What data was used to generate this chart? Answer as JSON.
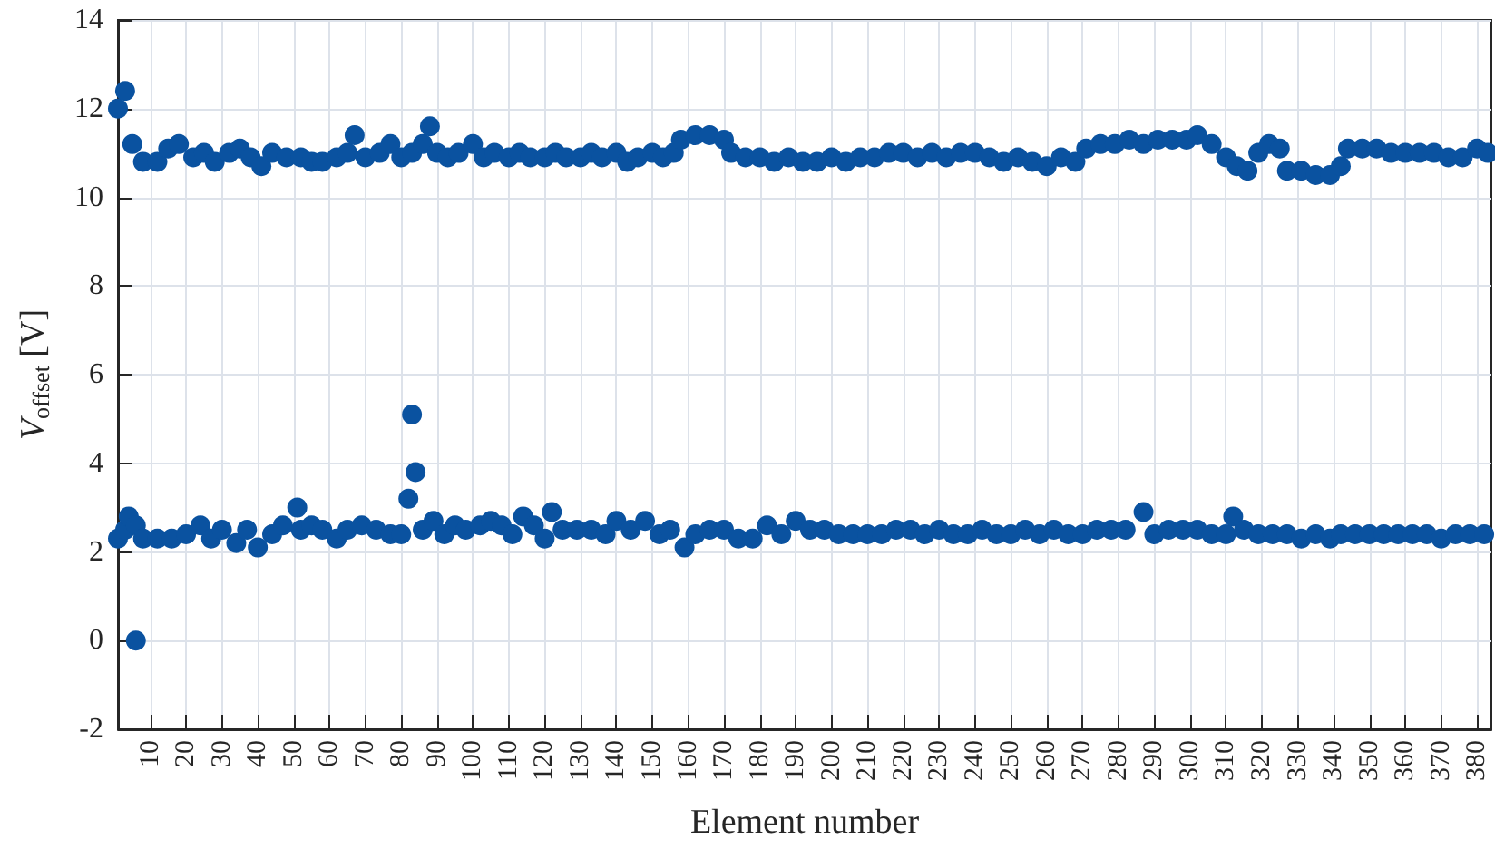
{
  "chart_data": {
    "type": "scatter",
    "xlabel": "Element number",
    "ylabel": "V$_{offset}$ [V]",
    "xlim": [
      1,
      384
    ],
    "ylim": [
      -2,
      14
    ],
    "xticks": [
      10,
      20,
      30,
      40,
      50,
      60,
      70,
      80,
      90,
      100,
      110,
      120,
      130,
      140,
      150,
      160,
      170,
      180,
      190,
      200,
      210,
      220,
      230,
      240,
      250,
      260,
      270,
      280,
      290,
      300,
      310,
      320,
      330,
      340,
      350,
      360,
      370,
      380
    ],
    "yticks": [
      -2,
      0,
      2,
      4,
      6,
      8,
      10,
      12,
      14
    ],
    "grid": true,
    "marker": "circle",
    "series": [
      {
        "color": "#0a52a0",
        "x": [
          1,
          3,
          5,
          8,
          12,
          15,
          18,
          22,
          25,
          28,
          32,
          35,
          38,
          41,
          44,
          48,
          52,
          55,
          58,
          62,
          65,
          67,
          70,
          74,
          77,
          80,
          83,
          86,
          88,
          90,
          93,
          96,
          100,
          103,
          106,
          110,
          113,
          116,
          120,
          123,
          126,
          130,
          133,
          136,
          140,
          143,
          146,
          150,
          153,
          156,
          158,
          162,
          166,
          170,
          172,
          176,
          180,
          184,
          188,
          192,
          196,
          200,
          204,
          208,
          212,
          216,
          220,
          224,
          228,
          232,
          236,
          240,
          244,
          248,
          252,
          256,
          260,
          264,
          268,
          271,
          275,
          279,
          283,
          287,
          291,
          295,
          299,
          302,
          306,
          310,
          313,
          316,
          319,
          322,
          325,
          327,
          331,
          335,
          339,
          342,
          344,
          348,
          352,
          356,
          360,
          364,
          368,
          372,
          376,
          380,
          383,
          1,
          3,
          4,
          6,
          6,
          8,
          12,
          16,
          20,
          24,
          27,
          30,
          34,
          37,
          40,
          44,
          47,
          51,
          52,
          55,
          58,
          62,
          65,
          69,
          73,
          77,
          80,
          82,
          83,
          84,
          86,
          89,
          92,
          95,
          98,
          102,
          105,
          108,
          111,
          114,
          117,
          120,
          122,
          125,
          129,
          133,
          137,
          140,
          144,
          148,
          152,
          155,
          159,
          162,
          166,
          170,
          174,
          178,
          182,
          186,
          190,
          194,
          198,
          202,
          206,
          210,
          214,
          218,
          222,
          226,
          230,
          234,
          238,
          242,
          246,
          250,
          254,
          258,
          262,
          266,
          270,
          274,
          278,
          282,
          287,
          290,
          294,
          298,
          302,
          306,
          310,
          312,
          315,
          319,
          323,
          327,
          331,
          335,
          339,
          342,
          346,
          350,
          354,
          358,
          362,
          366,
          370,
          374,
          378,
          382
        ],
        "values": [
          12.0,
          12.4,
          11.2,
          10.8,
          10.8,
          11.1,
          11.2,
          10.9,
          11.0,
          10.8,
          11.0,
          11.1,
          10.9,
          10.7,
          11.0,
          10.9,
          10.9,
          10.8,
          10.8,
          10.9,
          11.0,
          11.4,
          10.9,
          11.0,
          11.2,
          10.9,
          11.0,
          11.2,
          11.6,
          11.0,
          10.9,
          11.0,
          11.2,
          10.9,
          11.0,
          10.9,
          11.0,
          10.9,
          10.9,
          11.0,
          10.9,
          10.9,
          11.0,
          10.9,
          11.0,
          10.8,
          10.9,
          11.0,
          10.9,
          11.0,
          11.3,
          11.4,
          11.4,
          11.3,
          11.0,
          10.9,
          10.9,
          10.8,
          10.9,
          10.8,
          10.8,
          10.9,
          10.8,
          10.9,
          10.9,
          11.0,
          11.0,
          10.9,
          11.0,
          10.9,
          11.0,
          11.0,
          10.9,
          10.8,
          10.9,
          10.8,
          10.7,
          10.9,
          10.8,
          11.1,
          11.2,
          11.2,
          11.3,
          11.2,
          11.3,
          11.3,
          11.3,
          11.4,
          11.2,
          10.9,
          10.7,
          10.6,
          11.0,
          11.2,
          11.1,
          10.6,
          10.6,
          10.5,
          10.5,
          10.7,
          11.1,
          11.1,
          11.1,
          11.0,
          11.0,
          11.0,
          11.0,
          10.9,
          10.9,
          11.1,
          11.0,
          2.3,
          2.5,
          2.8,
          0.0,
          2.6,
          2.3,
          2.3,
          2.3,
          2.4,
          2.6,
          2.3,
          2.5,
          2.2,
          2.5,
          2.1,
          2.4,
          2.6,
          3.0,
          2.5,
          2.6,
          2.5,
          2.3,
          2.5,
          2.6,
          2.5,
          2.4,
          2.4,
          3.2,
          5.1,
          3.8,
          2.5,
          2.7,
          2.4,
          2.6,
          2.5,
          2.6,
          2.7,
          2.6,
          2.4,
          2.8,
          2.6,
          2.3,
          2.9,
          2.5,
          2.5,
          2.5,
          2.4,
          2.7,
          2.5,
          2.7,
          2.4,
          2.5,
          2.1,
          2.4,
          2.5,
          2.5,
          2.3,
          2.3,
          2.6,
          2.4,
          2.7,
          2.5,
          2.5,
          2.4,
          2.4,
          2.4,
          2.4,
          2.5,
          2.5,
          2.4,
          2.5,
          2.4,
          2.4,
          2.5,
          2.4,
          2.4,
          2.5,
          2.4,
          2.5,
          2.4,
          2.4,
          2.5,
          2.5,
          2.5,
          2.9,
          2.4,
          2.5,
          2.5,
          2.5,
          2.4,
          2.4,
          2.8,
          2.5,
          2.4,
          2.4,
          2.4,
          2.3,
          2.4,
          2.3,
          2.4,
          2.4,
          2.4,
          2.4,
          2.4,
          2.4,
          2.4,
          2.3,
          2.4,
          2.4,
          2.4
        ]
      }
    ]
  }
}
